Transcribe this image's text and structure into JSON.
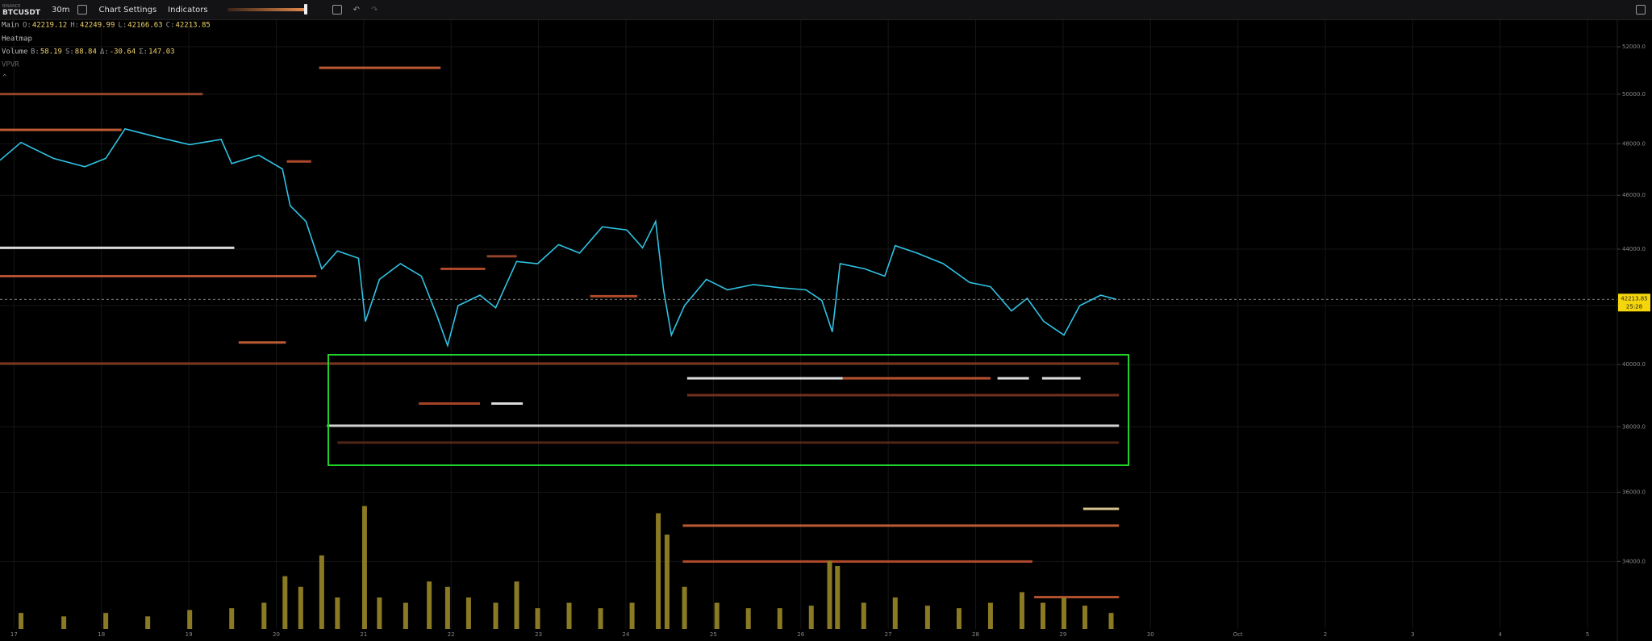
{
  "toolbar": {
    "exchange": "BINANCE",
    "symbol": "BTCUSDT",
    "interval": "30m",
    "chart_settings": "Chart Settings",
    "indicators": "Indicators"
  },
  "legend": {
    "main": "Main",
    "ohlc": [
      {
        "key": "O:",
        "value": 42219.12
      },
      {
        "key": "H:",
        "value": 42249.99
      },
      {
        "key": "L:",
        "value": 42166.63
      },
      {
        "key": "C:",
        "value": 42213.85
      }
    ],
    "heatmap": "Heatmap",
    "volume": "Volume",
    "volume_stats": [
      {
        "key": "B:",
        "value": 58.19
      },
      {
        "key": "S:",
        "value": 88.84
      },
      {
        "key": "Δ:",
        "value": -30.64
      },
      {
        "key": "Σ:",
        "value": 147.03
      }
    ],
    "vpvr": "VPVR"
  },
  "chart_data": {
    "type": "line",
    "log_scale": true,
    "grid": true,
    "xlim": [
      16.84,
      35.34
    ],
    "xticks": [
      17,
      18,
      19,
      20,
      21,
      22,
      23,
      24,
      25,
      26,
      27,
      28,
      29,
      30,
      {
        "value": 31,
        "label": "Oct"
      },
      {
        "value": 32,
        "label": "2"
      },
      {
        "value": 33,
        "label": "3"
      },
      {
        "value": 34,
        "label": "4"
      },
      {
        "value": 35,
        "label": "5"
      }
    ],
    "ylim": [
      32160,
      53190
    ],
    "yticks": [
      {
        "value": 34000,
        "label": "34000.0"
      },
      {
        "value": 36000,
        "label": "36000.0"
      },
      {
        "value": 38000,
        "label": "38000.0"
      },
      {
        "value": 40000,
        "label": "40000.0"
      },
      {
        "value": 42000,
        "label": "42000.0"
      },
      {
        "value": 44000,
        "label": "44000.0"
      },
      {
        "value": 46000,
        "label": "46000.0"
      },
      {
        "value": 48000,
        "label": "48000.0"
      },
      {
        "value": 50000,
        "label": "50000.0"
      },
      {
        "value": 52000,
        "label": "52000.0"
      }
    ],
    "x": [
      16.84,
      17.08,
      17.45,
      17.81,
      18.05,
      18.27,
      18.65,
      19.01,
      19.37,
      19.49,
      19.8,
      20.07,
      20.16,
      20.34,
      20.52,
      20.7,
      20.94,
      21.02,
      21.18,
      21.42,
      21.66,
      21.84,
      21.96,
      22.08,
      22.33,
      22.51,
      22.75,
      22.99,
      23.23,
      23.47,
      23.73,
      24.01,
      24.19,
      24.34,
      24.43,
      24.52,
      24.67,
      24.92,
      25.16,
      25.46,
      25.76,
      26.06,
      26.24,
      26.36,
      26.45,
      26.73,
      26.96,
      27.08,
      27.33,
      27.63,
      27.93,
      28.17,
      28.41,
      28.59,
      28.78,
      29.01,
      29.19,
      29.43,
      29.61
    ],
    "series": [
      {
        "color": "#2fc3e4",
        "values": [
          47347,
          48050,
          47424,
          47096,
          47424,
          48594,
          48256,
          47965,
          48173,
          47221,
          47549,
          47013,
          45604,
          45016,
          43290,
          43935,
          43670,
          41449,
          42916,
          43477,
          43030,
          41631,
          40633,
          41995,
          42359,
          41922,
          43555,
          43477,
          44164,
          43857,
          44819,
          44704,
          44049,
          45016,
          42546,
          40986,
          41995,
          42916,
          42546,
          42734,
          42621,
          42546,
          42177,
          41096,
          43477,
          43290,
          43030,
          44127,
          43857,
          43477,
          42806,
          42656,
          41813,
          42250,
          41449,
          40986,
          41995,
          42359,
          42214
        ]
      }
    ],
    "last_price": 42213.85,
    "countdown": "25:28",
    "heatmap_levels": [
      {
        "price": 51105,
        "from": 20.49,
        "to": 21.88,
        "color": "#d2643a"
      },
      {
        "price": 50009,
        "from": 16.84,
        "to": 19.16,
        "color": "#a34a2c"
      },
      {
        "price": 48552,
        "from": 16.84,
        "to": 18.23,
        "color": "#d2643a"
      },
      {
        "price": 47303,
        "from": 20.12,
        "to": 20.4,
        "color": "#c2502e"
      },
      {
        "price": 44049,
        "from": 16.84,
        "to": 19.52,
        "color": "#f2f2f2"
      },
      {
        "price": 43030,
        "from": 16.84,
        "to": 20.46,
        "color": "#c85a34"
      },
      {
        "price": 43290,
        "from": 21.88,
        "to": 22.39,
        "color": "#c2502e"
      },
      {
        "price": 43742,
        "from": 22.41,
        "to": 22.75,
        "color": "#a34a2c"
      },
      {
        "price": 42323,
        "from": 23.59,
        "to": 24.13,
        "color": "#c2502e"
      },
      {
        "price": 40737,
        "from": 19.57,
        "to": 20.11,
        "color": "#d2643a"
      },
      {
        "price": 40035,
        "from": 16.84,
        "to": 29.64,
        "color": "#8a3c24"
      },
      {
        "price": 39551,
        "from": 24.7,
        "to": 26.48,
        "color": "#f2f2f2"
      },
      {
        "price": 39551,
        "from": 26.48,
        "to": 28.17,
        "color": "#c85a34"
      },
      {
        "price": 39551,
        "from": 28.25,
        "to": 28.61,
        "color": "#f2f2f2"
      },
      {
        "price": 39551,
        "from": 28.76,
        "to": 29.2,
        "color": "#f2f2f2"
      },
      {
        "price": 39005,
        "from": 24.7,
        "to": 29.64,
        "color": "#7a3520"
      },
      {
        "price": 38735,
        "from": 21.63,
        "to": 22.33,
        "color": "#b84a2a"
      },
      {
        "price": 38735,
        "from": 22.46,
        "to": 22.82,
        "color": "#f2f2f2"
      },
      {
        "price": 38033,
        "from": 20.58,
        "to": 29.64,
        "color": "#e8e8e8"
      },
      {
        "price": 37507,
        "from": 20.7,
        "to": 29.64,
        "color": "#5a2a1a"
      },
      {
        "price": 35511,
        "from": 29.23,
        "to": 29.64,
        "color": "#f0d8a0"
      },
      {
        "price": 35022,
        "from": 24.65,
        "to": 29.64,
        "color": "#d2643a"
      },
      {
        "price": 34000,
        "from": 24.65,
        "to": 28.65,
        "color": "#c2502e"
      },
      {
        "price": 33015,
        "from": 28.67,
        "to": 29.64,
        "color": "#c85a34"
      }
    ],
    "volume": {
      "color": "#8a7a24",
      "ylim": [
        0,
        3000
      ],
      "x": [
        17.08,
        17.57,
        18.05,
        18.53,
        19.01,
        19.49,
        19.86,
        20.1,
        20.28,
        20.52,
        20.7,
        21.01,
        21.18,
        21.48,
        21.75,
        21.96,
        22.2,
        22.51,
        22.75,
        22.99,
        23.35,
        23.71,
        24.07,
        24.37,
        24.47,
        24.67,
        25.04,
        25.4,
        25.76,
        26.12,
        26.33,
        26.42,
        26.72,
        27.08,
        27.45,
        27.81,
        28.17,
        28.53,
        28.77,
        29.01,
        29.25,
        29.55
      ],
      "values": [
        330,
        260,
        330,
        260,
        390,
        430,
        540,
        1090,
        870,
        1520,
        650,
        2540,
        650,
        540,
        980,
        870,
        650,
        540,
        980,
        430,
        540,
        430,
        540,
        2390,
        1950,
        870,
        540,
        430,
        430,
        480,
        1410,
        1300,
        540,
        650,
        480,
        430,
        540,
        760,
        540,
        650,
        480,
        330
      ]
    }
  }
}
